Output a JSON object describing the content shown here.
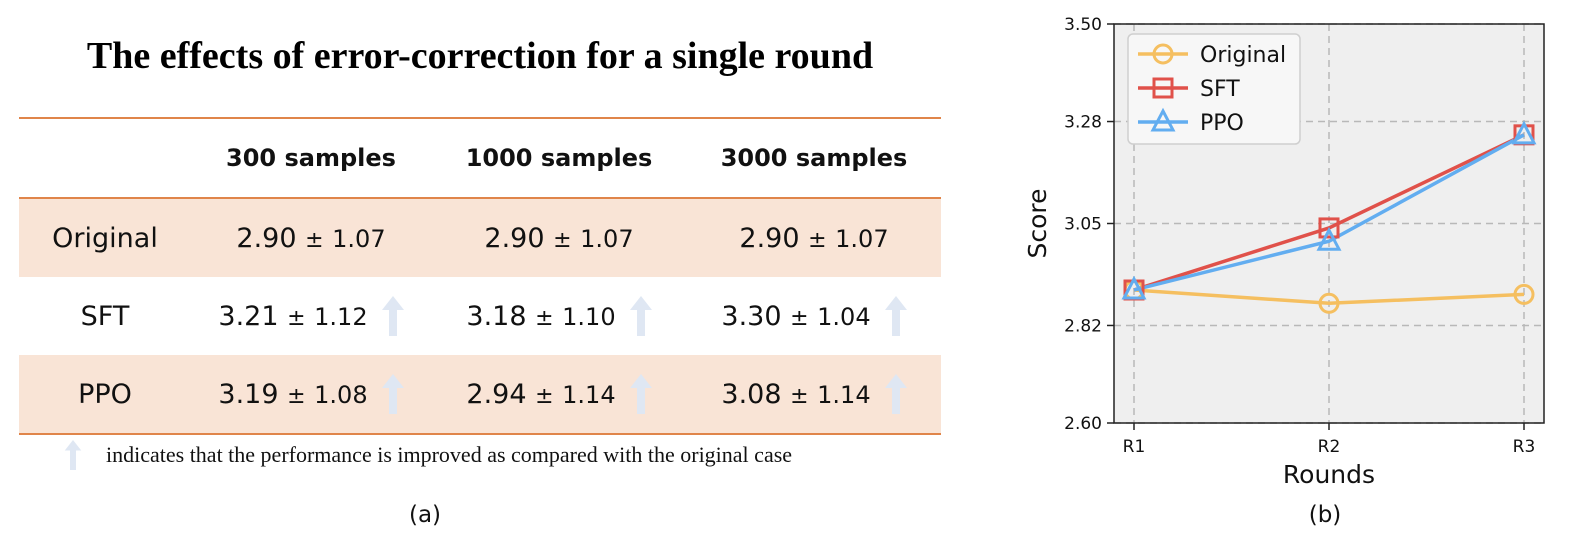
{
  "panel_a": {
    "title": "The effects of error-correction for a single round",
    "columns": [
      "",
      "300 samples",
      "1000 samples",
      "3000 samples"
    ],
    "rows": [
      {
        "label": "Original",
        "cells": [
          {
            "mean": "2.90",
            "sd": "1.07",
            "improved": false
          },
          {
            "mean": "2.90",
            "sd": "1.07",
            "improved": false
          },
          {
            "mean": "2.90",
            "sd": "1.07",
            "improved": false
          }
        ]
      },
      {
        "label": "SFT",
        "cells": [
          {
            "mean": "3.21",
            "sd": "1.12",
            "improved": true
          },
          {
            "mean": "3.18",
            "sd": "1.10",
            "improved": true
          },
          {
            "mean": "3.30",
            "sd": "1.04",
            "improved": true
          }
        ]
      },
      {
        "label": "PPO",
        "cells": [
          {
            "mean": "3.19",
            "sd": "1.08",
            "improved": true
          },
          {
            "mean": "2.94",
            "sd": "1.14",
            "improved": true
          },
          {
            "mean": "3.08",
            "sd": "1.14",
            "improved": true
          }
        ]
      }
    ],
    "pm_symbol": "±",
    "note": "indicates that the performance is improved as compared with the original case",
    "caption": "(a)",
    "arrow_icon": "up-arrow-icon",
    "colors": {
      "rule": "#e0854a",
      "shade": "#f9e4d6",
      "arrow": "#dfe7f3"
    }
  },
  "panel_b": {
    "caption": "(b)",
    "chart_data": {
      "type": "line",
      "xlabel": "Rounds",
      "ylabel": "Score",
      "categories": [
        "R1",
        "R2",
        "R3"
      ],
      "ylim": [
        2.6,
        3.5
      ],
      "yticks": [
        "2.60",
        "2.82",
        "3.05",
        "3.28",
        "3.50"
      ],
      "grid": true,
      "legend_position": "top-left",
      "series": [
        {
          "name": "Original",
          "values": [
            2.9,
            2.87,
            2.89
          ],
          "color": "#f5bf60",
          "marker": "circle"
        },
        {
          "name": "SFT",
          "values": [
            2.9,
            3.04,
            3.25
          ],
          "color": "#e0514a",
          "marker": "square"
        },
        {
          "name": "PPO",
          "values": [
            2.9,
            3.01,
            3.25
          ],
          "color": "#62adf0",
          "marker": "triangle"
        }
      ]
    }
  }
}
